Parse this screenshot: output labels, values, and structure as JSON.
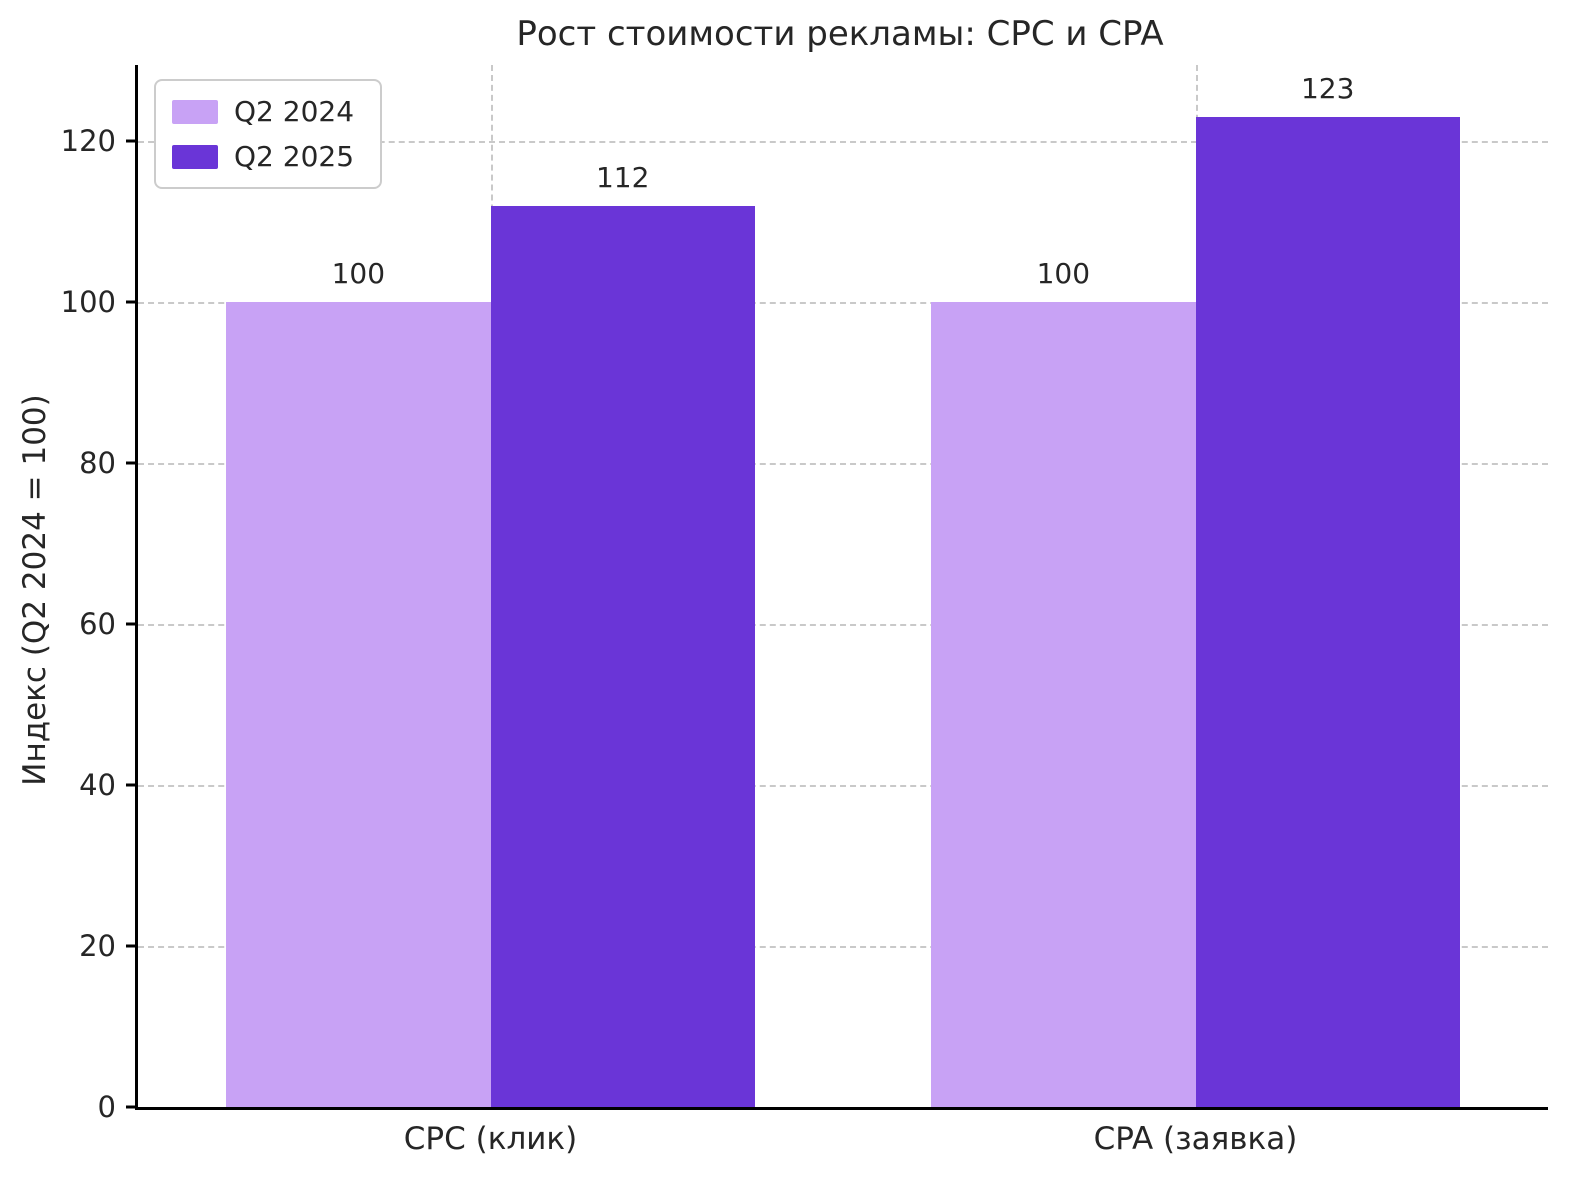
{
  "chart_data": {
    "type": "bar",
    "title": "Рост стоимости рекламы: CPC и CPA",
    "ylabel": "Индекс (Q2 2024 = 100)",
    "xlabel": "",
    "categories": [
      "CPC (клик)",
      "CPA (заявка)"
    ],
    "series": [
      {
        "name": "Q2 2024",
        "color": "#c8a2f5",
        "values": [
          100,
          100
        ]
      },
      {
        "name": "Q2 2025",
        "color": "#6a35d7",
        "values": [
          112,
          123
        ]
      }
    ],
    "yticks": [
      0,
      20,
      40,
      60,
      80,
      100,
      120
    ],
    "ylim": [
      0,
      129.5
    ],
    "grid": "dashed",
    "legend_position": "upper-left"
  }
}
